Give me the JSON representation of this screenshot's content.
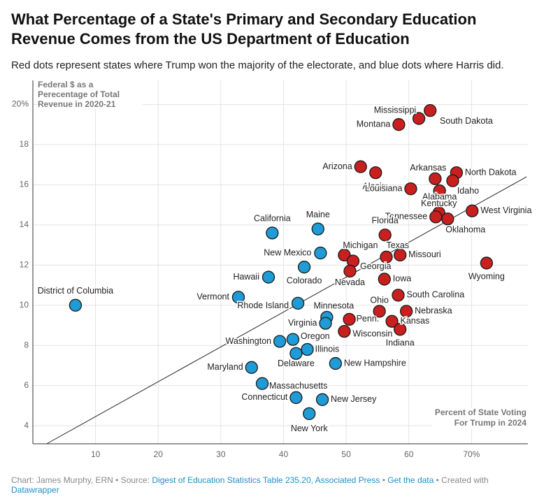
{
  "chart_data": {
    "type": "scatter",
    "title": "What Percentage of a State's Primary and Secondary Education Revenue Comes from the US Department of Education",
    "subtitle": "Red dots represent states where Trump won the majority of the electorate, and blue dots where Harris did.",
    "y_axis_label": "Federal $ as a Perecentage of Total Revenue in 2020-21",
    "x_axis_label": "Percent of State Voting For Trump in 2024",
    "xlim": [
      0,
      79
    ],
    "ylim": [
      3.1,
      21.2
    ],
    "xticks": [
      10,
      20,
      30,
      40,
      50,
      60,
      {
        "value": 70,
        "label": "70%"
      }
    ],
    "yticks": [
      4,
      6,
      8,
      10,
      12,
      14,
      16,
      18,
      {
        "value": 20,
        "label": "20%"
      }
    ],
    "grid": true,
    "trend_line": {
      "x": [
        2.2,
        78.8
      ],
      "y": [
        3.1,
        16.4
      ]
    },
    "series": [
      {
        "color": "#1f9bd5",
        "labels": [
          "District of Columbia",
          "California",
          "Maine",
          "New Mexico",
          "Colorado",
          "Hawaii",
          "Vermont",
          "Rhode Island",
          "Minnesota",
          "Virginia",
          "Washington",
          "Oregon",
          "Illinois",
          "Delaware",
          "New Hampshire",
          "Maryland",
          "Massachusetts",
          "Connecticut",
          "New Jersey",
          "New York"
        ],
        "x": [
          6.8,
          38.2,
          45.5,
          45.9,
          43.3,
          37.6,
          32.8,
          42.3,
          46.9,
          46.7,
          39.4,
          41.5,
          43.8,
          42.0,
          48.3,
          34.9,
          36.6,
          42.0,
          46.2,
          44.1
        ],
        "values": [
          10.0,
          13.6,
          13.8,
          12.6,
          11.9,
          11.4,
          10.4,
          10.1,
          9.4,
          9.1,
          8.2,
          8.3,
          7.8,
          7.6,
          7.1,
          6.9,
          6.1,
          5.4,
          5.3,
          4.6
        ]
      },
      {
        "color": "#c91f1f",
        "labels": [
          "Mississippi",
          "South Dakota",
          "Montana",
          "Arizona",
          "Alaska",
          "Arkansas",
          "North Dakota",
          "Louisiana",
          "Idaho",
          "Alabama",
          "West Virginia",
          "Kentucky",
          "Tennessee",
          "Oklahoma",
          "Florida",
          "Michigan",
          "Texas",
          "Missouri",
          "Georgia",
          "Nevada",
          "Wyoming",
          "Iowa",
          "South Carolina",
          "Ohio",
          "Nebraska",
          "Penn.",
          "Kansas",
          "Wisconsin",
          "Indiana"
        ],
        "x": [
          63.4,
          61.6,
          58.4,
          52.3,
          54.7,
          64.2,
          67.6,
          60.3,
          67.0,
          64.9,
          70.1,
          64.8,
          64.3,
          66.2,
          56.2,
          49.7,
          56.4,
          58.6,
          51.1,
          50.6,
          72.4,
          56.1,
          58.3,
          55.3,
          59.6,
          50.5,
          57.3,
          49.7,
          58.6
        ],
        "values": [
          19.7,
          19.3,
          19.0,
          16.9,
          16.6,
          16.3,
          16.6,
          15.8,
          16.2,
          15.7,
          14.7,
          14.6,
          14.4,
          14.3,
          13.5,
          12.5,
          12.4,
          12.5,
          12.2,
          11.7,
          12.1,
          11.3,
          10.5,
          9.7,
          9.7,
          9.3,
          9.2,
          8.7,
          8.8
        ]
      }
    ],
    "footer": {
      "credit": "Chart: James Murphy, ERN • Source:",
      "source": "Digest of Education Statistics Table 235.20, Associated Press",
      "separator": "•",
      "data_link": "Get the data",
      "created": "• Created with",
      "tool": "Datawrapper"
    }
  }
}
